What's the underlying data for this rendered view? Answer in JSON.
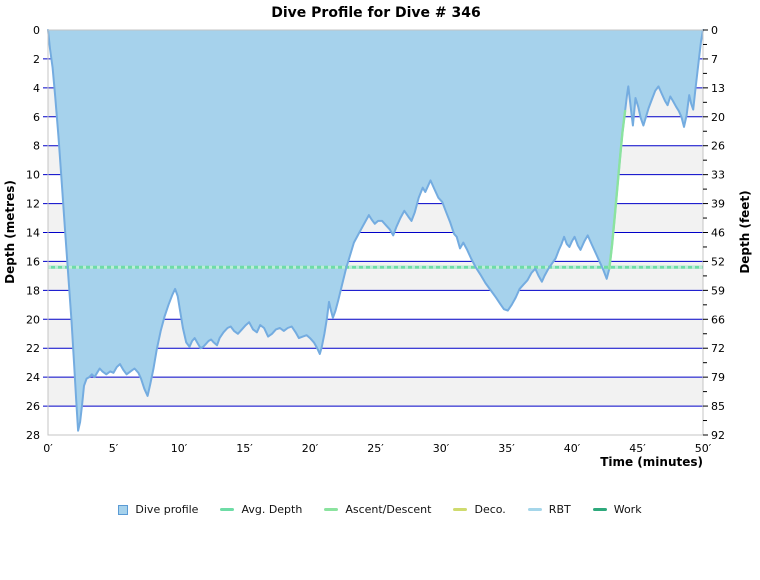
{
  "chart_data": {
    "type": "area",
    "title": "Dive Profile for Dive # 346",
    "xlabel": "Time (minutes)",
    "ylabel_left": "Depth (metres)",
    "ylabel_right": "Depth (feet)",
    "xlim": [
      0,
      50
    ],
    "ylim_metres": [
      0,
      28
    ],
    "x_tick_values": [
      0,
      5,
      10,
      15,
      20,
      25,
      30,
      35,
      40,
      45,
      50
    ],
    "x_tick_labels": [
      "0′",
      "5′",
      "10′",
      "15′",
      "20′",
      "25′",
      "30′",
      "35′",
      "40′",
      "45′",
      "50′"
    ],
    "y_ticks_metres": [
      0,
      2,
      4,
      6,
      8,
      10,
      12,
      14,
      16,
      18,
      20,
      22,
      24,
      26,
      28
    ],
    "y_tick_labels_feet": [
      "0",
      "7",
      "13",
      "20",
      "26",
      "33",
      "39",
      "46",
      "52",
      "59",
      "66",
      "72",
      "79",
      "85",
      "92"
    ],
    "avg_depth_m": 16.4,
    "max_depth_m": 27.7,
    "duration_min": 50,
    "ascent_highlight_t_range": [
      42.85,
      44.12
    ],
    "grid": {
      "horizontal_step_m": 2,
      "gray_bands_start": [
        4,
        8,
        12,
        16,
        20,
        24
      ],
      "gridline_color": "#0000c8",
      "band_color": "#f2f2f2",
      "border_color": "#c4c4c4"
    },
    "colors": {
      "profile_fill": "#a6d2ec",
      "profile_stroke": "#74ace0",
      "avg_depth": "#6edca6",
      "avg_depth_light": "#bceed8",
      "ascent": "#8be39f"
    },
    "legend": [
      {
        "label": "Dive profile",
        "marker": "square",
        "color": "#a6d2ec",
        "border": "#5b9bd5"
      },
      {
        "label": "Avg. Depth",
        "marker": "dash",
        "color": "#6edca6"
      },
      {
        "label": "Ascent/Descent",
        "marker": "dash",
        "color": "#8be39f"
      },
      {
        "label": "Deco.",
        "marker": "dash",
        "color": "#cfdb6e"
      },
      {
        "label": "RBT",
        "marker": "dash",
        "color": "#a5d6ea"
      },
      {
        "label": "Work",
        "marker": "dash",
        "color": "#2ea97c"
      }
    ],
    "series": [
      {
        "name": "Dive profile",
        "points": [
          [
            0,
            0
          ],
          [
            0.15,
            1.3
          ],
          [
            0.35,
            2.6
          ],
          [
            0.55,
            4.6
          ],
          [
            0.8,
            7.4
          ],
          [
            1.05,
            10.6
          ],
          [
            1.3,
            13.8
          ],
          [
            1.55,
            17
          ],
          [
            1.8,
            20.2
          ],
          [
            2,
            23.2
          ],
          [
            2.15,
            25.6
          ],
          [
            2.3,
            27.7
          ],
          [
            2.45,
            27.1
          ],
          [
            2.6,
            25.9
          ],
          [
            2.75,
            24.6
          ],
          [
            2.95,
            24.1
          ],
          [
            3.15,
            24
          ],
          [
            3.35,
            23.8
          ],
          [
            3.55,
            24
          ],
          [
            3.75,
            23.7
          ],
          [
            3.95,
            23.4
          ],
          [
            4.15,
            23.6
          ],
          [
            4.45,
            23.8
          ],
          [
            4.75,
            23.6
          ],
          [
            5,
            23.7
          ],
          [
            5.25,
            23.3
          ],
          [
            5.5,
            23.1
          ],
          [
            5.75,
            23.5
          ],
          [
            6,
            23.8
          ],
          [
            6.3,
            23.6
          ],
          [
            6.6,
            23.4
          ],
          [
            6.9,
            23.7
          ],
          [
            7.1,
            24.1
          ],
          [
            7.35,
            24.8
          ],
          [
            7.6,
            25.3
          ],
          [
            7.8,
            24.5
          ],
          [
            8.05,
            23.4
          ],
          [
            8.3,
            22.1
          ],
          [
            8.6,
            20.8
          ],
          [
            8.9,
            19.8
          ],
          [
            9.2,
            19
          ],
          [
            9.5,
            18.3
          ],
          [
            9.7,
            17.9
          ],
          [
            9.9,
            18.4
          ],
          [
            10.1,
            19.5
          ],
          [
            10.3,
            20.6
          ],
          [
            10.55,
            21.6
          ],
          [
            10.8,
            21.9
          ],
          [
            11,
            21.5
          ],
          [
            11.2,
            21.3
          ],
          [
            11.45,
            21.7
          ],
          [
            11.65,
            22
          ],
          [
            11.85,
            21.9
          ],
          [
            12.05,
            21.7
          ],
          [
            12.25,
            21.5
          ],
          [
            12.45,
            21.4
          ],
          [
            12.65,
            21.6
          ],
          [
            12.9,
            21.8
          ],
          [
            13.1,
            21.3
          ],
          [
            13.4,
            20.9
          ],
          [
            13.7,
            20.6
          ],
          [
            13.95,
            20.5
          ],
          [
            14.2,
            20.8
          ],
          [
            14.5,
            21
          ],
          [
            14.8,
            20.7
          ],
          [
            15.1,
            20.4
          ],
          [
            15.35,
            20.2
          ],
          [
            15.65,
            20.7
          ],
          [
            15.95,
            20.9
          ],
          [
            16.2,
            20.4
          ],
          [
            16.5,
            20.6
          ],
          [
            16.8,
            21.2
          ],
          [
            17.1,
            21
          ],
          [
            17.4,
            20.7
          ],
          [
            17.7,
            20.6
          ],
          [
            18,
            20.8
          ],
          [
            18.3,
            20.6
          ],
          [
            18.6,
            20.5
          ],
          [
            18.9,
            20.9
          ],
          [
            19.15,
            21.3
          ],
          [
            19.45,
            21.2
          ],
          [
            19.75,
            21.1
          ],
          [
            20,
            21.3
          ],
          [
            20.3,
            21.6
          ],
          [
            20.55,
            22
          ],
          [
            20.75,
            22.4
          ],
          [
            20.9,
            21.9
          ],
          [
            21.1,
            21
          ],
          [
            21.3,
            19.9
          ],
          [
            21.45,
            18.8
          ],
          [
            21.6,
            19.4
          ],
          [
            21.75,
            19.9
          ],
          [
            21.95,
            19.4
          ],
          [
            22.15,
            18.7
          ],
          [
            22.45,
            17.6
          ],
          [
            22.75,
            16.5
          ],
          [
            23.05,
            15.6
          ],
          [
            23.35,
            14.7
          ],
          [
            23.65,
            14.2
          ],
          [
            23.95,
            13.7
          ],
          [
            24.25,
            13.2
          ],
          [
            24.5,
            12.8
          ],
          [
            24.7,
            13.1
          ],
          [
            24.95,
            13.4
          ],
          [
            25.2,
            13.2
          ],
          [
            25.5,
            13.2
          ],
          [
            25.8,
            13.5
          ],
          [
            26.1,
            13.8
          ],
          [
            26.35,
            14.2
          ],
          [
            26.6,
            13.6
          ],
          [
            26.9,
            13
          ],
          [
            27.2,
            12.5
          ],
          [
            27.5,
            12.9
          ],
          [
            27.75,
            13.2
          ],
          [
            28,
            12.6
          ],
          [
            28.3,
            11.6
          ],
          [
            28.6,
            10.9
          ],
          [
            28.8,
            11.2
          ],
          [
            29,
            10.8
          ],
          [
            29.2,
            10.4
          ],
          [
            29.5,
            11
          ],
          [
            29.8,
            11.6
          ],
          [
            30.1,
            11.9
          ],
          [
            30.4,
            12.6
          ],
          [
            30.7,
            13.3
          ],
          [
            31,
            14.1
          ],
          [
            31.2,
            14.3
          ],
          [
            31.45,
            15.1
          ],
          [
            31.7,
            14.7
          ],
          [
            32,
            15.2
          ],
          [
            32.3,
            15.8
          ],
          [
            32.65,
            16.4
          ],
          [
            33,
            16.9
          ],
          [
            33.4,
            17.5
          ],
          [
            33.8,
            18
          ],
          [
            34.2,
            18.5
          ],
          [
            34.5,
            18.9
          ],
          [
            34.8,
            19.3
          ],
          [
            35.1,
            19.4
          ],
          [
            35.4,
            19
          ],
          [
            35.7,
            18.5
          ],
          [
            36,
            17.9
          ],
          [
            36.3,
            17.6
          ],
          [
            36.6,
            17.3
          ],
          [
            36.9,
            16.8
          ],
          [
            37.2,
            16.5
          ],
          [
            37.45,
            17
          ],
          [
            37.7,
            17.4
          ],
          [
            37.9,
            17
          ],
          [
            38.2,
            16.5
          ],
          [
            38.5,
            16.1
          ],
          [
            38.75,
            15.8
          ],
          [
            39,
            15.2
          ],
          [
            39.2,
            14.8
          ],
          [
            39.4,
            14.3
          ],
          [
            39.6,
            14.8
          ],
          [
            39.8,
            15
          ],
          [
            40,
            14.6
          ],
          [
            40.2,
            14.3
          ],
          [
            40.45,
            14.9
          ],
          [
            40.65,
            15.2
          ],
          [
            40.95,
            14.6
          ],
          [
            41.2,
            14.2
          ],
          [
            41.5,
            14.8
          ],
          [
            41.8,
            15.4
          ],
          [
            42.1,
            16
          ],
          [
            42.4,
            16.6
          ],
          [
            42.65,
            17.2
          ],
          [
            42.85,
            16.5
          ],
          [
            43.05,
            14.9
          ],
          [
            43.25,
            13
          ],
          [
            43.45,
            11
          ],
          [
            43.65,
            9
          ],
          [
            43.85,
            7.1
          ],
          [
            44.05,
            5.6
          ],
          [
            44.2,
            4.5
          ],
          [
            44.3,
            3.9
          ],
          [
            44.5,
            5.5
          ],
          [
            44.65,
            6.6
          ],
          [
            44.85,
            4.7
          ],
          [
            45.05,
            5.3
          ],
          [
            45.25,
            6.1
          ],
          [
            45.45,
            6.6
          ],
          [
            45.65,
            6
          ],
          [
            45.85,
            5.4
          ],
          [
            46.1,
            4.8
          ],
          [
            46.35,
            4.2
          ],
          [
            46.6,
            3.9
          ],
          [
            46.85,
            4.4
          ],
          [
            47.1,
            4.9
          ],
          [
            47.3,
            5.2
          ],
          [
            47.5,
            4.6
          ],
          [
            47.7,
            4.9
          ],
          [
            47.95,
            5.3
          ],
          [
            48.15,
            5.6
          ],
          [
            48.35,
            6
          ],
          [
            48.55,
            6.7
          ],
          [
            48.75,
            5.9
          ],
          [
            48.95,
            4.5
          ],
          [
            49.1,
            5.1
          ],
          [
            49.25,
            5.5
          ],
          [
            49.4,
            4.3
          ],
          [
            49.55,
            3.1
          ],
          [
            49.7,
            1.9
          ],
          [
            49.85,
            0.8
          ],
          [
            50,
            0
          ]
        ]
      }
    ]
  }
}
